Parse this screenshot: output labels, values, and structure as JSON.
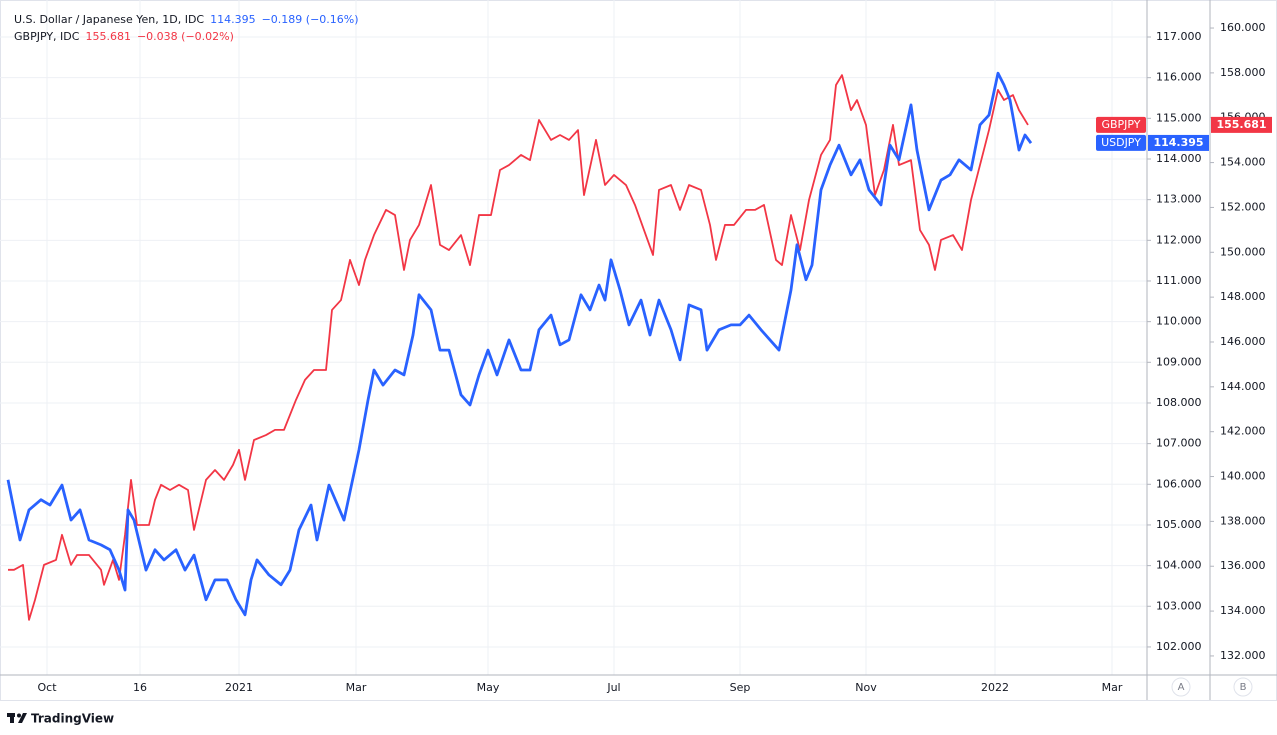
{
  "chart_data": {
    "type": "line",
    "xlim": [
      -2.67,
      379.67
    ],
    "xticks": [
      {
        "value": 13,
        "label": "Oct"
      },
      {
        "value": 44,
        "label": "16"
      },
      {
        "value": 77,
        "label": "2021"
      },
      {
        "value": 116,
        "label": "Mar"
      },
      {
        "value": 160,
        "label": "May"
      },
      {
        "value": 202,
        "label": "Jul"
      },
      {
        "value": 244,
        "label": "Sep"
      },
      {
        "value": 286,
        "label": "Nov"
      },
      {
        "value": 329,
        "label": "2022"
      },
      {
        "value": 368,
        "label": "Mar"
      }
    ],
    "ylim": [
      101.31,
      117.91
    ],
    "yticks": [
      {
        "value": 102,
        "label": "102.000"
      },
      {
        "value": 103,
        "label": "103.000"
      },
      {
        "value": 104,
        "label": "104.000"
      },
      {
        "value": 105,
        "label": "105.000"
      },
      {
        "value": 106,
        "label": "106.000"
      },
      {
        "value": 107,
        "label": "107.000"
      },
      {
        "value": 108,
        "label": "108.000"
      },
      {
        "value": 109,
        "label": "109.000"
      },
      {
        "value": 110,
        "label": "110.000"
      },
      {
        "value": 111,
        "label": "111.000"
      },
      {
        "value": 112,
        "label": "112.000"
      },
      {
        "value": 113,
        "label": "113.000"
      },
      {
        "value": 114,
        "label": "114.000"
      },
      {
        "value": 115,
        "label": "115.000"
      },
      {
        "value": 116,
        "label": "116.000"
      },
      {
        "value": 117,
        "label": "117.000"
      }
    ],
    "y2lim": [
      131.15,
      161.25
    ],
    "y2ticks": [
      {
        "value": 132,
        "label": "132.000"
      },
      {
        "value": 134,
        "label": "134.000"
      },
      {
        "value": 136,
        "label": "136.000"
      },
      {
        "value": 138,
        "label": "138.000"
      },
      {
        "value": 140,
        "label": "140.000"
      },
      {
        "value": 142,
        "label": "142.000"
      },
      {
        "value": 144,
        "label": "144.000"
      },
      {
        "value": 146,
        "label": "146.000"
      },
      {
        "value": 148,
        "label": "148.000"
      },
      {
        "value": 150,
        "label": "150.000"
      },
      {
        "value": 152,
        "label": "152.000"
      },
      {
        "value": 154,
        "label": "154.000"
      },
      {
        "value": 156,
        "label": "156.000"
      },
      {
        "value": 158,
        "label": "158.000"
      },
      {
        "value": 160,
        "label": "160.000"
      }
    ],
    "grid": true,
    "series": [
      {
        "name": "USDJPY",
        "legend": "U.S. Dollar / Japanese Yen, 1D, IDC",
        "last": 114.395,
        "change": "−0.189 (−0.16%)",
        "color": "#2962ff",
        "axis": "y",
        "x": [
          0,
          4,
          7,
          11,
          14,
          18,
          21,
          24,
          27,
          31,
          34,
          37,
          39,
          40,
          42,
          46,
          49,
          52,
          56,
          59,
          62,
          66,
          69,
          73,
          76,
          79,
          81,
          83,
          87,
          91,
          94,
          97,
          101,
          103,
          107,
          112,
          117,
          120,
          122,
          125,
          129,
          132,
          135,
          137,
          141,
          144,
          147,
          151,
          154,
          157,
          160,
          163,
          167,
          171,
          174,
          177,
          181,
          184,
          187,
          191,
          194,
          197,
          199,
          201,
          204,
          207,
          211,
          214,
          217,
          221,
          224,
          227,
          231,
          233,
          237,
          241,
          244,
          247,
          251,
          254,
          257,
          261,
          263,
          266,
          268,
          271,
          274,
          277,
          281,
          284,
          287,
          291,
          294,
          297,
          301,
          303,
          307,
          311,
          314,
          317,
          321,
          324,
          327,
          330,
          332,
          334,
          337,
          339,
          341
        ],
        "values": [
          106.11,
          104.63,
          105.37,
          105.62,
          105.49,
          105.98,
          105.12,
          105.37,
          104.63,
          104.51,
          104.39,
          103.89,
          103.4,
          105.37,
          105.12,
          103.89,
          104.39,
          104.14,
          104.39,
          103.89,
          104.26,
          103.16,
          103.65,
          103.65,
          103.16,
          102.79,
          103.65,
          104.14,
          103.77,
          103.53,
          103.89,
          104.88,
          105.49,
          104.63,
          105.98,
          105.12,
          106.85,
          108.07,
          108.81,
          108.44,
          108.81,
          108.69,
          109.67,
          110.66,
          110.29,
          109.3,
          109.3,
          108.2,
          107.95,
          108.69,
          109.3,
          108.69,
          109.55,
          108.81,
          108.81,
          109.8,
          110.16,
          109.43,
          109.55,
          110.66,
          110.29,
          110.9,
          110.53,
          111.52,
          110.78,
          109.92,
          110.53,
          109.67,
          110.53,
          109.8,
          109.06,
          110.41,
          110.29,
          109.3,
          109.8,
          109.92,
          109.92,
          110.16,
          109.8,
          109.55,
          109.3,
          110.78,
          111.89,
          111.03,
          111.39,
          113.24,
          113.85,
          114.34,
          113.61,
          113.98,
          113.24,
          112.87,
          114.34,
          113.98,
          115.33,
          114.22,
          112.75,
          113.48,
          113.61,
          113.98,
          113.73,
          114.84,
          115.08,
          116.11,
          115.82,
          115.45,
          114.22,
          114.59,
          114.39
        ]
      },
      {
        "name": "GBPJPY",
        "legend": "GBPJPY, IDC",
        "last": 155.681,
        "change": "−0.038 (−0.02%)",
        "color": "#f23645",
        "axis": "y2",
        "x": [
          0,
          2,
          5,
          7,
          9,
          12,
          16,
          18,
          21,
          23,
          27,
          31,
          32,
          35,
          37,
          39,
          41,
          43,
          47,
          49,
          51,
          54,
          57,
          60,
          62,
          66,
          69,
          72,
          75,
          77,
          79,
          82,
          86,
          89,
          92,
          96,
          99,
          102,
          106,
          108,
          111,
          114,
          117,
          119,
          122,
          126,
          129,
          132,
          134,
          137,
          141,
          144,
          147,
          151,
          154,
          157,
          161,
          164,
          167,
          171,
          174,
          177,
          181,
          184,
          187,
          190,
          192,
          196,
          199,
          202,
          206,
          209,
          212,
          215,
          217,
          221,
          224,
          227,
          231,
          234,
          236,
          239,
          242,
          246,
          249,
          252,
          256,
          258,
          261,
          264,
          267,
          271,
          274,
          276,
          278,
          281,
          283,
          286,
          289,
          292,
          295,
          297,
          301,
          304,
          307,
          309,
          311,
          315,
          318,
          321,
          324,
          327,
          330,
          332,
          335,
          337,
          340
        ],
        "values": [
          135.84,
          135.84,
          136.06,
          133.61,
          134.5,
          136.06,
          136.28,
          137.4,
          136.06,
          136.5,
          136.5,
          135.84,
          135.17,
          136.28,
          135.39,
          137.4,
          139.85,
          137.84,
          137.84,
          138.96,
          139.63,
          139.4,
          139.63,
          139.4,
          137.62,
          139.85,
          140.29,
          139.85,
          140.52,
          141.19,
          139.85,
          141.63,
          141.85,
          142.08,
          142.08,
          143.42,
          144.31,
          144.75,
          144.75,
          147.43,
          147.87,
          149.66,
          148.54,
          149.66,
          150.77,
          151.89,
          151.66,
          149.21,
          150.55,
          151.22,
          153.0,
          150.33,
          150.1,
          150.77,
          149.43,
          151.66,
          151.66,
          153.67,
          153.89,
          154.34,
          154.11,
          155.9,
          155.01,
          155.23,
          155.01,
          155.45,
          152.55,
          155.01,
          153.0,
          153.45,
          153.0,
          152.11,
          150.99,
          149.88,
          152.78,
          153.0,
          151.89,
          153.0,
          152.78,
          151.22,
          149.66,
          151.22,
          151.22,
          151.89,
          151.89,
          152.11,
          149.66,
          149.43,
          151.66,
          150.1,
          152.33,
          154.34,
          155.01,
          157.46,
          157.9,
          156.34,
          156.79,
          155.68,
          152.55,
          153.67,
          155.68,
          153.89,
          154.11,
          150.99,
          150.33,
          149.21,
          150.55,
          150.77,
          150.1,
          152.33,
          153.89,
          155.45,
          157.24,
          156.79,
          157.01,
          156.34,
          155.68
        ]
      }
    ],
    "scale_buttons": [
      "A",
      "B"
    ],
    "brand": "TradingView"
  }
}
